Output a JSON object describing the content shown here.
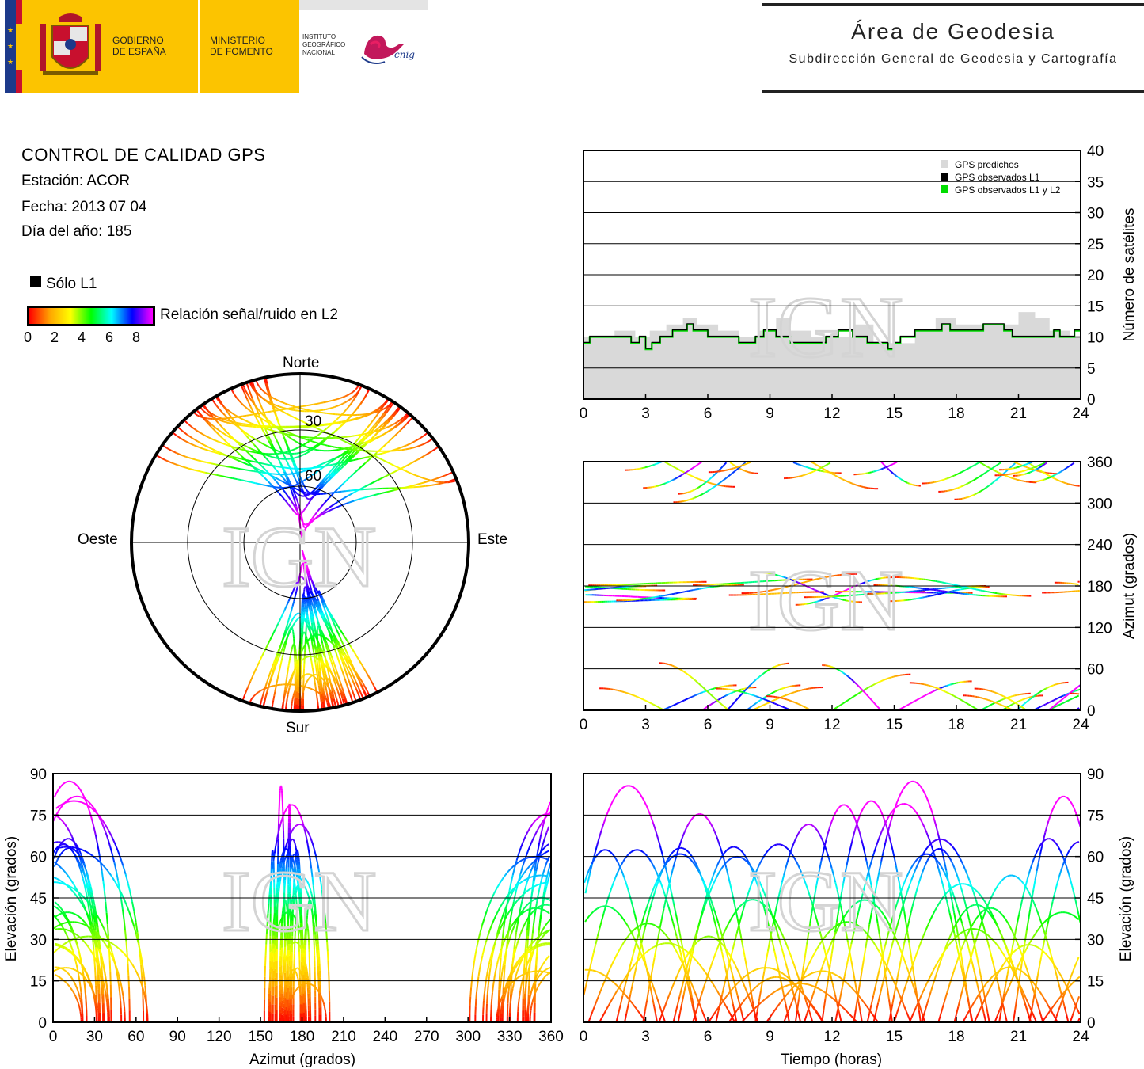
{
  "header": {
    "gov_line1": "GOBIERNO",
    "gov_line2": "DE ESPAÑA",
    "min_line1": "MINISTERIO",
    "min_line2": "DE FOMENTO",
    "ign_line1": "INSTITUTO",
    "ign_line2": "GEOGRÁFICO",
    "ign_line3": "NACIONAL",
    "cnig_text": "cnig",
    "area_title": "Área de Geodesia",
    "area_subtitle": "Subdirección General de Geodesia y Cartografía"
  },
  "report": {
    "title": "CONTROL DE CALIDAD GPS",
    "station": "Estación: ACOR",
    "date": "Fecha: 2013 07 04",
    "doy": "Día del año: 185",
    "solo_l1": "Sólo L1",
    "snr_label": "Relación señal/ruido en L2",
    "snr_ticks": [
      "0",
      "2",
      "4",
      "6",
      "8"
    ]
  },
  "colors": {
    "yellow": "#fcc400",
    "predicted_fill": "#d9d9d9",
    "observed_l1": "#000000",
    "observed_l1_l2": "#00dd00",
    "snr_gradient": [
      "#ff0000",
      "#ffa500",
      "#ffff00",
      "#00ff00",
      "#00ffff",
      "#0000ff",
      "#ff00ff"
    ]
  },
  "watermark": "IGN",
  "chart_data": [
    {
      "id": "skyplot",
      "type": "scatter",
      "projection": "polar",
      "cardinals": {
        "north": "Norte",
        "south": "Sur",
        "east": "Este",
        "west": "Oeste"
      },
      "ring_labels": [
        "30",
        "60"
      ],
      "rings_elevation": [
        0,
        30,
        60
      ]
    },
    {
      "id": "sat_count",
      "type": "area",
      "ylabel": "Número de satélites",
      "xlim": [
        0,
        24
      ],
      "ylim": [
        0,
        40
      ],
      "xticks": [
        "0",
        "3",
        "6",
        "9",
        "12",
        "15",
        "18",
        "21",
        "24"
      ],
      "yticks": [
        "0",
        "5",
        "10",
        "15",
        "20",
        "25",
        "30",
        "35",
        "40"
      ],
      "legend": [
        "GPS predichos",
        "GPS observados L1",
        "GPS observados L1 y L2"
      ],
      "legend_position": "top-right",
      "series": [
        {
          "name": "GPS predichos",
          "x": [
            0,
            0.5,
            1.5,
            2.5,
            3.2,
            4,
            4.8,
            5.5,
            6.5,
            7.5,
            8.5,
            9.3,
            10,
            11,
            12,
            13,
            14,
            15,
            16,
            17,
            18,
            19,
            20,
            21,
            21.8,
            22.5,
            23.5,
            24
          ],
          "values": [
            10,
            10,
            11,
            10,
            11,
            12,
            13,
            12,
            11,
            10,
            11,
            13,
            11,
            10,
            10,
            12,
            9,
            9,
            11,
            13,
            12,
            12,
            12,
            14,
            13,
            11,
            10,
            10
          ]
        },
        {
          "name": "GPS observados L1 y L2",
          "x": [
            0,
            0.3,
            1,
            1.7,
            2.3,
            2.7,
            3,
            3.3,
            3.7,
            4,
            4.3,
            4.7,
            5,
            5.3,
            5.7,
            6,
            6.5,
            7,
            7.5,
            8,
            8.3,
            8.7,
            9,
            9.3,
            9.7,
            10,
            10.3,
            10.7,
            11,
            11.3,
            11.7,
            12,
            12.3,
            12.7,
            13,
            13.3,
            13.7,
            14,
            14.3,
            14.7,
            15,
            15.3,
            15.7,
            16,
            16.3,
            16.7,
            17,
            17.3,
            17.7,
            18,
            18.3,
            18.7,
            19,
            19.3,
            19.7,
            20,
            20.3,
            20.7,
            21,
            21.3,
            21.7,
            22,
            22.3,
            22.7,
            23,
            23.3,
            23.7,
            24
          ],
          "values": [
            9,
            10,
            10,
            10,
            9,
            10,
            8,
            9,
            10,
            10,
            11,
            11,
            12,
            11,
            11,
            10,
            10,
            10,
            9,
            9,
            10,
            11,
            11,
            10,
            10,
            9,
            9,
            9,
            9,
            9,
            10,
            10,
            11,
            11,
            10,
            10,
            9,
            9,
            9,
            8,
            9,
            10,
            10,
            11,
            11,
            11,
            11,
            12,
            11,
            11,
            11,
            11,
            11,
            12,
            12,
            12,
            11,
            10,
            10,
            10,
            10,
            10,
            10,
            11,
            10,
            10,
            11,
            11
          ]
        }
      ]
    },
    {
      "id": "azimuth_time",
      "type": "scatter",
      "ylabel": "Azimut (grados)",
      "xlim": [
        0,
        24
      ],
      "ylim": [
        0,
        360
      ],
      "xticks": [
        "0",
        "3",
        "6",
        "9",
        "12",
        "15",
        "18",
        "21",
        "24"
      ],
      "yticks": [
        "0",
        "60",
        "120",
        "180",
        "240",
        "300",
        "360"
      ]
    },
    {
      "id": "elev_azimuth",
      "type": "scatter",
      "xlabel": "Azimut (grados)",
      "ylabel": "Elevación (grados)",
      "xlim": [
        0,
        360
      ],
      "ylim": [
        0,
        90
      ],
      "xticks": [
        "0",
        "30",
        "60",
        "90",
        "120",
        "150",
        "180",
        "210",
        "240",
        "270",
        "300",
        "330",
        "360"
      ],
      "yticks": [
        "0",
        "15",
        "30",
        "45",
        "60",
        "75",
        "90"
      ]
    },
    {
      "id": "elev_time",
      "type": "scatter",
      "xlabel": "Tiempo (horas)",
      "ylabel": "Elevación (grados)",
      "xlim": [
        0,
        24
      ],
      "ylim": [
        0,
        90
      ],
      "xticks": [
        "0",
        "3",
        "6",
        "9",
        "12",
        "15",
        "18",
        "21",
        "24"
      ],
      "yticks": [
        "0",
        "15",
        "30",
        "45",
        "60",
        "75",
        "90"
      ]
    }
  ]
}
